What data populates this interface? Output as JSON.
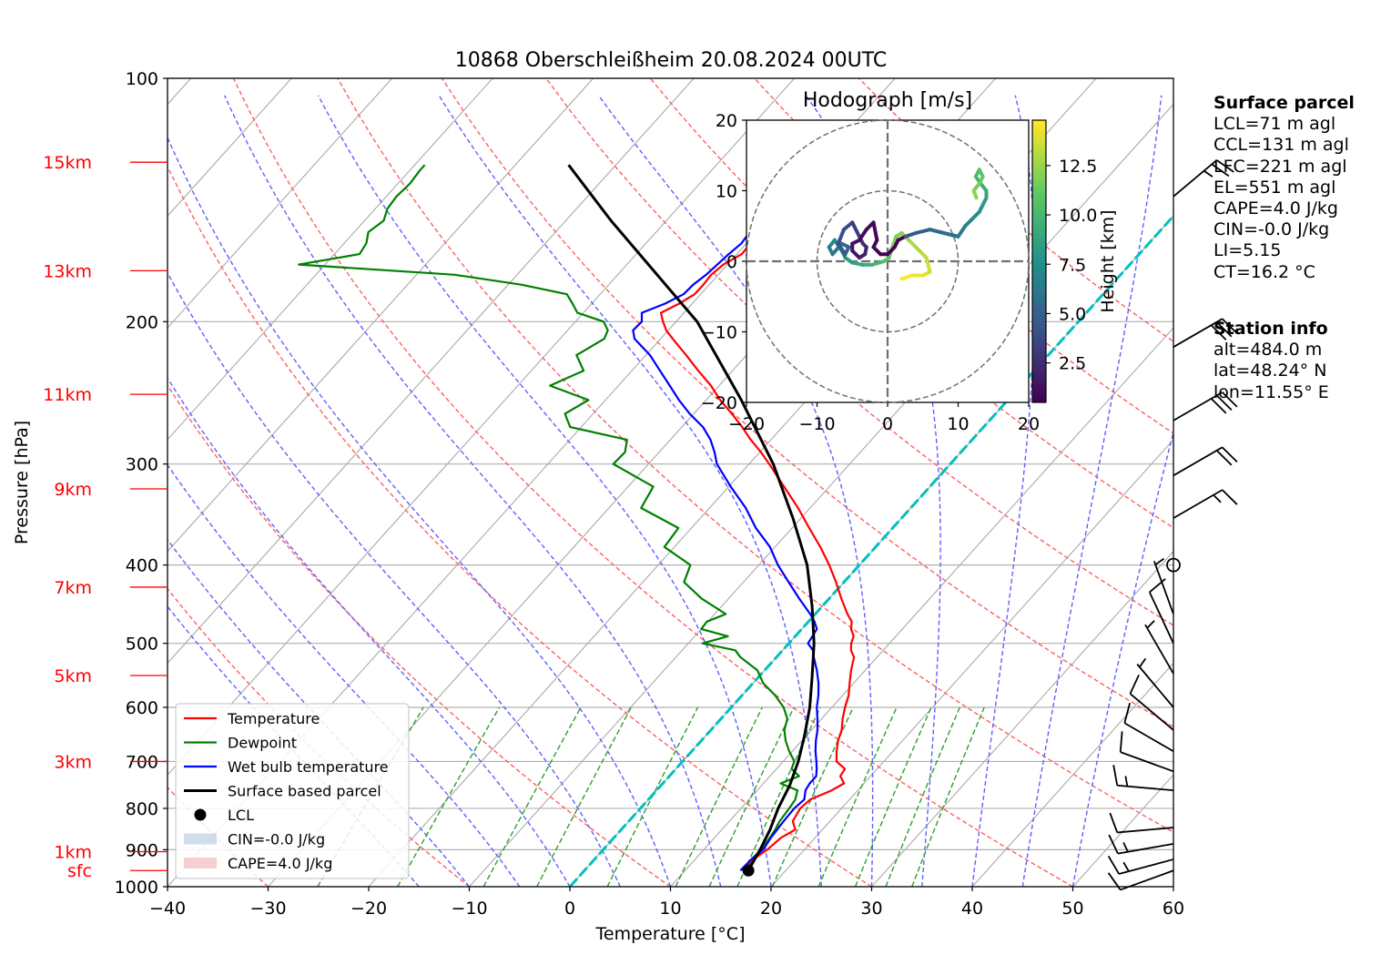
{
  "title": "10868 Oberschleißheim 20.08.2024 00UTC",
  "colors": {
    "temperature": "#ff0000",
    "dewpoint": "#008000",
    "wetbulb": "#0000ff",
    "parcel": "#000000",
    "dry_adiabat": "#ff6060",
    "moist_adiabat": "#6060ff",
    "mixing_ratio": "#2e9e2e",
    "zero_isotherm": "#00c0c0",
    "height_label": "#ff0000"
  },
  "chart_data": [
    {
      "type": "line",
      "subtype": "skew-T log-p diagram",
      "title": "10868 Oberschleißheim 20.08.2024 00UTC",
      "xlabel": "Temperature [°C]",
      "ylabel": "Pressure [hPa]",
      "xlim": [
        -40,
        60
      ],
      "ylim": [
        1000,
        100
      ],
      "y_scale": "log",
      "grid": true,
      "x_ticks": [
        -40,
        -30,
        -20,
        -10,
        0,
        10,
        20,
        30,
        40,
        50,
        60
      ],
      "x_tick_labels": [
        "−40",
        "−30",
        "−20",
        "−10",
        "0",
        "10",
        "20",
        "30",
        "40",
        "50",
        "60"
      ],
      "y_ticks": [
        1000,
        900,
        800,
        700,
        600,
        500,
        400,
        300,
        200,
        100
      ],
      "y_tick_labels": [
        "1000",
        "900",
        "800",
        "700",
        "600",
        "500",
        "400",
        "300",
        "200",
        "100"
      ],
      "height_labels": [
        {
          "label": "sfc",
          "p": 955
        },
        {
          "label": "1km",
          "p": 905
        },
        {
          "label": "3km",
          "p": 700
        },
        {
          "label": "5km",
          "p": 548
        },
        {
          "label": "7km",
          "p": 426
        },
        {
          "label": "9km",
          "p": 322
        },
        {
          "label": "11km",
          "p": 246
        },
        {
          "label": "13km",
          "p": 173
        },
        {
          "label": "15km",
          "p": 127
        }
      ],
      "legend": {
        "placement": "lower-left",
        "entries": [
          "Temperature",
          "Dewpoint",
          "Wet bulb temperature",
          "Surface based parcel",
          "LCL",
          "CIN=-0.0 J/kg",
          "CAPE=4.0 J/kg"
        ]
      },
      "series": [
        {
          "name": "Temperature",
          "p": [
            955,
            925,
            900,
            870,
            850,
            830,
            800,
            780,
            760,
            745,
            730,
            715,
            700,
            680,
            660,
            640,
            620,
            600,
            580,
            560,
            540,
            520,
            510,
            500,
            490,
            480,
            470,
            460,
            440,
            420,
            400,
            380,
            360,
            340,
            320,
            300,
            290,
            280,
            270,
            260,
            250,
            240,
            230,
            220,
            210,
            205,
            200,
            195,
            190,
            185,
            180,
            175,
            170,
            165,
            160,
            155,
            150,
            145,
            140,
            135,
            130,
            128
          ],
          "t": [
            16,
            15.8,
            16.3,
            16.6,
            17.3,
            16.3,
            15.9,
            16.1,
            17.4,
            18,
            17,
            16.8,
            15.3,
            14.4,
            13.6,
            13,
            12.1,
            11.3,
            10.6,
            9.6,
            8.6,
            7.7,
            6.8,
            6.2,
            5.8,
            4.9,
            4.3,
            3.2,
            1.2,
            -0.8,
            -3.0,
            -5.5,
            -8.3,
            -11.2,
            -14.5,
            -18.0,
            -19.9,
            -22.0,
            -24.0,
            -26.2,
            -28.6,
            -30.8,
            -33.4,
            -36,
            -38.8,
            -40.2,
            -41.3,
            -42.3,
            -41.3,
            -40.6,
            -40.6,
            -40.7,
            -40.4,
            -39.5,
            -39.6,
            -39.7,
            -39.1,
            -39.5,
            -39.6,
            -38.5,
            -38.3,
            -38
          ]
        },
        {
          "name": "Dewpoint",
          "p": [
            955,
            925,
            900,
            870,
            850,
            830,
            800,
            780,
            760,
            745,
            730,
            715,
            700,
            680,
            660,
            640,
            620,
            600,
            580,
            560,
            540,
            520,
            510,
            500,
            490,
            480,
            470,
            460,
            440,
            420,
            400,
            380,
            360,
            340,
            320,
            300,
            290,
            280,
            270,
            260,
            250,
            240,
            230,
            220,
            210,
            205,
            200,
            195,
            190,
            185,
            180,
            175,
            170,
            165,
            160,
            155,
            150,
            145,
            140,
            135,
            130,
            128
          ],
          "t": [
            15.7,
            15.6,
            15.7,
            15.5,
            15.3,
            15,
            14.8,
            14.6,
            14,
            11.7,
            12.9,
            11.5,
            11.1,
            9.7,
            8.4,
            7.3,
            6.6,
            5.2,
            3.3,
            1.0,
            -0.7,
            -3.6,
            -4.7,
            -8.6,
            -6.7,
            -10.0,
            -10.1,
            -8.9,
            -12.7,
            -15.9,
            -16.8,
            -21,
            -21.3,
            -26.8,
            -27.5,
            -33.5,
            -33.4,
            -34.3,
            -41.1,
            -42.8,
            -41.7,
            -46.8,
            -44.8,
            -46.9,
            -45.6,
            -46.0,
            -47.2,
            -50.6,
            -51.9,
            -53.3,
            -58.7,
            -66.2,
            -82.6,
            -77.5,
            -77.8,
            -78.6,
            -78.1,
            -78.8,
            -79.0,
            -78.8,
            -79.0,
            -79
          ]
        },
        {
          "name": "Wet bulb temperature",
          "p": [
            955,
            925,
            900,
            870,
            850,
            830,
            800,
            780,
            760,
            745,
            730,
            715,
            700,
            680,
            660,
            640,
            620,
            600,
            580,
            560,
            540,
            520,
            510,
            500,
            490,
            480,
            470,
            460,
            440,
            420,
            400,
            380,
            360,
            340,
            320,
            300,
            290,
            280,
            270,
            260,
            250,
            240,
            230,
            220,
            210,
            205,
            200,
            195,
            190,
            185,
            180,
            175,
            170,
            165,
            160,
            155,
            150,
            145,
            140,
            135,
            130,
            128
          ],
          "t": [
            15.5,
            15.6,
            15.9,
            15.6,
            15.5,
            15.4,
            15.3,
            15.5,
            14.8,
            14.6,
            14.6,
            14,
            13.3,
            12.3,
            11.4,
            10.6,
            9.6,
            8.5,
            7.6,
            6.5,
            5.2,
            3.7,
            3.0,
            1.9,
            1.7,
            1.5,
            0.6,
            -0.5,
            -3.0,
            -5.5,
            -8.1,
            -10.5,
            -13.6,
            -16.4,
            -19.8,
            -23.2,
            -24.5,
            -26.0,
            -27.9,
            -30.4,
            -32.7,
            -34.9,
            -37.2,
            -39.6,
            -42.6,
            -43.5,
            -43.4,
            -44.2,
            -42.7,
            -41.7,
            -41.6,
            -41.2,
            -41.0,
            -40.8,
            -40.5,
            -40.7,
            -40.0,
            -40.2,
            -40.3,
            -39.2,
            -39.0,
            -38.9
          ]
        },
        {
          "name": "Surface based parcel",
          "p": [
            955,
            900,
            850,
            800,
            750,
            700,
            650,
            600,
            550,
            500,
            450,
            400,
            350,
            300,
            250,
            200,
            150,
            128
          ],
          "t": [
            16.3,
            15.6,
            14.8,
            13.7,
            12.8,
            11.5,
            9.8,
            7.8,
            5.3,
            2.5,
            -1.0,
            -5.2,
            -10.8,
            -17.6,
            -26.5,
            -37.9,
            -55.5,
            -64.7
          ]
        }
      ],
      "points": [
        {
          "name": "LCL",
          "t": 16.3,
          "p": 955
        }
      ],
      "zero_isotherm_label": "0 °C isotherm"
    },
    {
      "type": "scatter",
      "title": "Hodograph [m/s]",
      "xlim": [
        -20,
        20
      ],
      "ylim": [
        -20,
        20
      ],
      "x_ticks": [
        -20,
        -10,
        0,
        10,
        20
      ],
      "x_tick_labels": [
        "−20",
        "−10",
        "0",
        "10",
        "20"
      ],
      "y_ticks": [
        -20,
        -10,
        0,
        10,
        20
      ],
      "y_tick_labels": [
        "−20",
        "−10",
        "0",
        "10",
        "20"
      ],
      "rings": [
        10,
        20
      ],
      "colorbar": {
        "label": "Height [km]",
        "ticks": [
          2.5,
          5.0,
          7.5,
          10.0,
          12.5
        ],
        "tick_labels": [
          "2.5",
          "5.0",
          "7.5",
          "10.0",
          "12.5"
        ],
        "range": [
          0.5,
          14.8
        ]
      },
      "u": [
        2,
        3.5,
        5,
        6,
        5.5,
        4.5,
        3,
        2,
        1.2,
        0.5,
        0.2,
        -0.5,
        -1.2,
        -2.2,
        -3.5,
        -5,
        -6,
        -6.5,
        -7.5,
        -8.3,
        -7.8,
        -6.5,
        -5.5,
        -6,
        -7,
        -6.2,
        -5,
        -4,
        -3.5,
        -3,
        -3.2,
        -4,
        -5,
        -5,
        -4,
        -3,
        -2,
        -1.5,
        -2,
        -1,
        0,
        1,
        1.5,
        2.5,
        4,
        6,
        8,
        10,
        11,
        12,
        13,
        13.5,
        14,
        14,
        13.2,
        12.5,
        13,
        13.5,
        13,
        12.2,
        12.6
      ],
      "v": [
        -2.5,
        -2,
        -2,
        -1.5,
        0.5,
        1.5,
        3,
        4,
        3.5,
        1.5,
        0.5,
        0,
        -0.2,
        -0.5,
        -0.5,
        -0.2,
        0.5,
        1.5,
        3,
        2,
        1,
        2.5,
        2,
        1,
        2.5,
        4.5,
        5.5,
        3.5,
        2.5,
        2,
        1,
        0.5,
        1.5,
        2.5,
        3,
        4.5,
        5.5,
        3,
        2,
        1,
        1,
        2,
        3,
        3.5,
        4,
        4.5,
        4,
        3.5,
        5,
        6,
        7,
        8,
        9,
        10,
        11,
        12,
        13,
        12,
        11,
        10,
        9
      ],
      "h": [
        14.8,
        14.5,
        14.2,
        13.8,
        13.4,
        13,
        12.6,
        12.2,
        11.8,
        11.4,
        11,
        10.5,
        10,
        9.5,
        9,
        8.5,
        8,
        7.5,
        7,
        6.5,
        6,
        5.5,
        5,
        4.5,
        4,
        3.6,
        3.2,
        2.8,
        2.5,
        2.2,
        1.9,
        1.6,
        1.3,
        1.1,
        1.0,
        0.9,
        0.8,
        0.75,
        0.7,
        0.65,
        0.6,
        0.55,
        0.5,
        4.3,
        4.8,
        5.3,
        5.8,
        6.3,
        6.8,
        7.3,
        7.8,
        8.3,
        8.8,
        9.3,
        9.8,
        10.3,
        10.8,
        11.3,
        11.8,
        12.3,
        12.8
      ]
    }
  ],
  "wind_barbs": [
    {
      "p": 955,
      "speed_kt": 10,
      "dir": 250
    },
    {
      "p": 925,
      "speed_kt": 15,
      "dir": 255
    },
    {
      "p": 885,
      "speed_kt": 15,
      "dir": 260
    },
    {
      "p": 845,
      "speed_kt": 10,
      "dir": 265
    },
    {
      "p": 760,
      "speed_kt": 15,
      "dir": 275
    },
    {
      "p": 720,
      "speed_kt": 10,
      "dir": 290
    },
    {
      "p": 680,
      "speed_kt": 10,
      "dir": 300
    },
    {
      "p": 640,
      "speed_kt": 10,
      "dir": 310
    },
    {
      "p": 600,
      "speed_kt": 5,
      "dir": 320
    },
    {
      "p": 545,
      "speed_kt": 5,
      "dir": 330
    },
    {
      "p": 500,
      "speed_kt": 10,
      "dir": 335
    },
    {
      "p": 460,
      "speed_kt": 5,
      "dir": 340
    },
    {
      "p": 400,
      "speed_kt": 0,
      "dir": 0
    },
    {
      "p": 350,
      "speed_kt": 15,
      "dir": 60
    },
    {
      "p": 310,
      "speed_kt": 20,
      "dir": 60
    },
    {
      "p": 265,
      "speed_kt": 30,
      "dir": 60
    },
    {
      "p": 215,
      "speed_kt": 30,
      "dir": 60
    },
    {
      "p": 140,
      "speed_kt": 25,
      "dir": 50
    }
  ],
  "surface_parcel": {
    "heading": "Surface parcel",
    "lines": [
      "LCL=71 m agl",
      "CCL=131 m agl",
      "LFC=221 m agl",
      "EL=551 m agl",
      "CAPE=4.0 J/kg",
      "CIN=-0.0 J/kg",
      "LI=5.15",
      "CT=16.2 °C"
    ]
  },
  "station_info": {
    "heading": "Station info",
    "lines": [
      "alt=484.0 m",
      "lat=48.24° N",
      "lon=11.55° E"
    ]
  }
}
